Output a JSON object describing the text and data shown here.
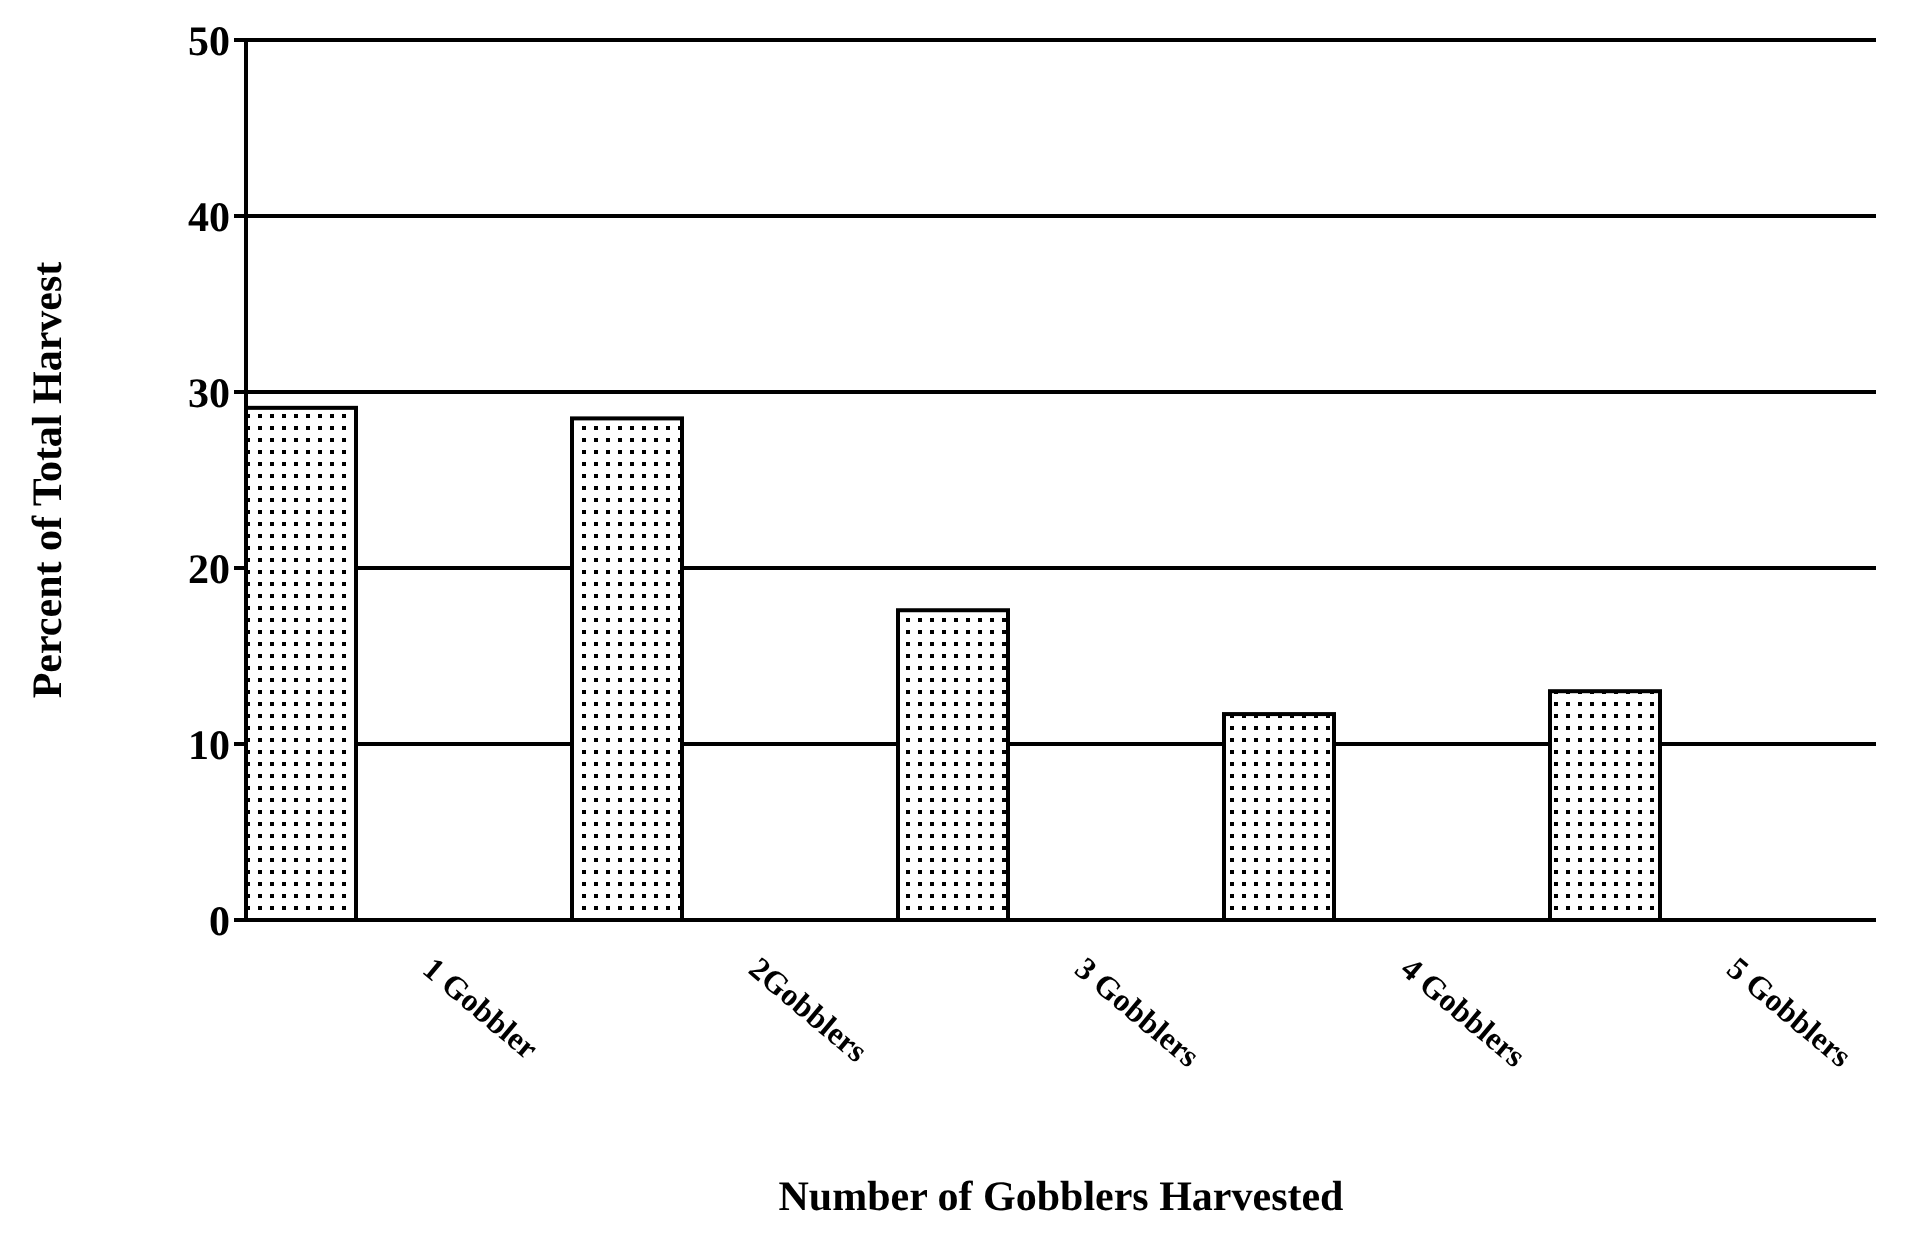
{
  "chart_data": {
    "type": "bar",
    "xlabel": "Number of Gobblers Harvested",
    "ylabel": "Percent of Total Harvest",
    "categories": [
      "1 Gobbler",
      "2Gobblers",
      "3 Gobblers",
      "4 Gobblers",
      "5 Gobblers"
    ],
    "values": [
      29.1,
      28.5,
      17.6,
      11.7,
      13.0
    ],
    "color": "#000000",
    "ylim": [
      0,
      50
    ],
    "yticks": [
      0,
      10,
      20,
      30,
      40,
      50
    ],
    "grid": "y",
    "legend": false
  }
}
